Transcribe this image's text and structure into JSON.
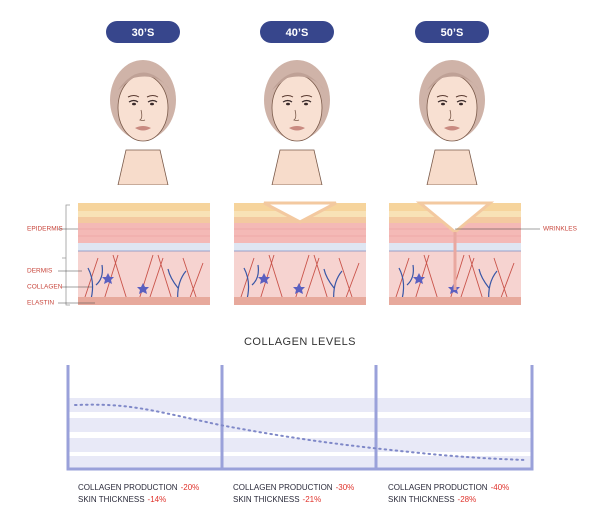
{
  "ages": [
    "30’S",
    "40’S",
    "50’S"
  ],
  "skin_labels": {
    "epidermis": "EPIDERMIS",
    "dermis": "DERMIS",
    "collagen": "COLLAGEN",
    "elastin": "ELASTIN",
    "wrinkles": "WRINKLES"
  },
  "chart_title": "COLLAGEN LEVELS",
  "stats": [
    {
      "production_label": "COLLAGEN PRODUCTION",
      "production": "-20%",
      "thickness_label": "SKIN THICKNESS",
      "thickness": "-14%"
    },
    {
      "production_label": "COLLAGEN PRODUCTION",
      "production": "-30%",
      "thickness_label": "SKIN THICKNESS",
      "thickness": "-21%"
    },
    {
      "production_label": "COLLAGEN PRODUCTION",
      "production": "-40%",
      "thickness_label": "SKIN THICKNESS",
      "thickness": "-28%"
    }
  ]
}
